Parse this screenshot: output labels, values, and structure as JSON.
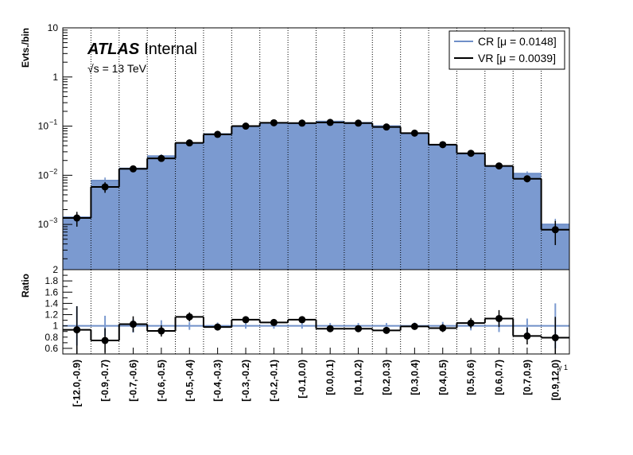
{
  "chart_data": [
    {
      "type": "bar",
      "panel": "main",
      "ylabel": "Evts./bin",
      "yscale": "log",
      "ylim": [
        0.00012,
        10
      ],
      "yticks": [
        {
          "value": 10,
          "label": "10"
        },
        {
          "value": 1,
          "label": "1"
        },
        {
          "value": 0.1,
          "label": "10",
          "exp": "−1"
        },
        {
          "value": 0.01,
          "label": "10",
          "exp": "−2"
        },
        {
          "value": 0.001,
          "label": "10",
          "exp": "−3"
        }
      ],
      "categories": [
        "[-12.0,-0.9)",
        "[-0.9,-0.7)",
        "[-0.7,-0.6)",
        "[-0.6,-0.5)",
        "[-0.5,-0.4)",
        "[-0.4,-0.3)",
        "[-0.3,-0.2)",
        "[-0.2,-0.1)",
        "[-0.1,0.0)",
        "[0.0,0.1)",
        "[0.1,0.2)",
        "[0.2,0.3)",
        "[0.3,0.4)",
        "[0.4,0.5)",
        "[0.5,0.6)",
        "[0.6,0.7)",
        "[0.7,0.9)",
        "[0.9,12.0)"
      ],
      "series": [
        {
          "name": "CR [μ = 0.0148]",
          "color": "#7b9ad0",
          "line_color": "#6f8fc8",
          "style": "filled-histogram",
          "values": [
            0.0014,
            0.0078,
            0.0138,
            0.0245,
            0.0445,
            0.069,
            0.0975,
            0.116,
            0.114,
            0.124,
            0.117,
            0.1,
            0.0705,
            0.041,
            0.027,
            0.015,
            0.0108,
            0.001
          ],
          "errors": [
            0.0003,
            0.0012,
            0.0015,
            0.0022,
            0.003,
            0.004,
            0.005,
            0.005,
            0.005,
            0.005,
            0.005,
            0.005,
            0.004,
            0.003,
            0.0022,
            0.0015,
            0.0012,
            0.0003
          ]
        },
        {
          "name": "VR [μ = 0.0039]",
          "color": "#000000",
          "style": "line-histogram-points",
          "values": [
            0.00135,
            0.0058,
            0.0135,
            0.022,
            0.0455,
            0.068,
            0.1,
            0.117,
            0.115,
            0.119,
            0.115,
            0.096,
            0.072,
            0.042,
            0.028,
            0.0155,
            0.0085,
            0.00078
          ],
          "errors": [
            0.00045,
            0.0014,
            0.0015,
            0.002,
            0.003,
            0.004,
            0.005,
            0.005,
            0.005,
            0.005,
            0.005,
            0.005,
            0.004,
            0.003,
            0.002,
            0.0015,
            0.0013,
            0.0004
          ]
        }
      ],
      "legend": "top-right",
      "annotations": {
        "experiment": "ATLAS",
        "status": "Internal",
        "energy": "√s = 13 TeV"
      }
    },
    {
      "type": "scatter",
      "panel": "ratio",
      "ylabel": "Ratio",
      "xlabel": "γ 1",
      "ylim": [
        0.5,
        2
      ],
      "yticks": [
        0.6,
        0.8,
        1,
        1.2,
        1.4,
        1.6,
        1.8,
        2
      ],
      "ytick_labels": [
        "0.6",
        "0.8",
        "1",
        "1.2",
        "1.4",
        "1.6",
        "1.8",
        "2"
      ],
      "reference_line": 1,
      "series": [
        {
          "name": "CR",
          "color": "#7b9ad0",
          "values": [
            1,
            1,
            1,
            1,
            1,
            1,
            1,
            1,
            1,
            1,
            1,
            1,
            1,
            1,
            1,
            1,
            1,
            1
          ],
          "errors": [
            0.35,
            0.18,
            0.12,
            0.1,
            0.07,
            0.06,
            0.05,
            0.05,
            0.05,
            0.05,
            0.05,
            0.05,
            0.06,
            0.07,
            0.08,
            0.11,
            0.13,
            0.4
          ]
        },
        {
          "name": "VR",
          "color": "#000000",
          "values": [
            0.93,
            0.74,
            1.03,
            0.91,
            1.16,
            0.98,
            1.11,
            1.06,
            1.11,
            0.95,
            0.95,
            0.92,
            0.99,
            0.96,
            1.05,
            1.13,
            0.82,
            0.79
          ],
          "errors": [
            0.42,
            0.22,
            0.14,
            0.1,
            0.08,
            0.05,
            0.05,
            0.05,
            0.05,
            0.05,
            0.05,
            0.05,
            0.05,
            0.07,
            0.09,
            0.15,
            0.15,
            0.37
          ]
        }
      ]
    }
  ]
}
